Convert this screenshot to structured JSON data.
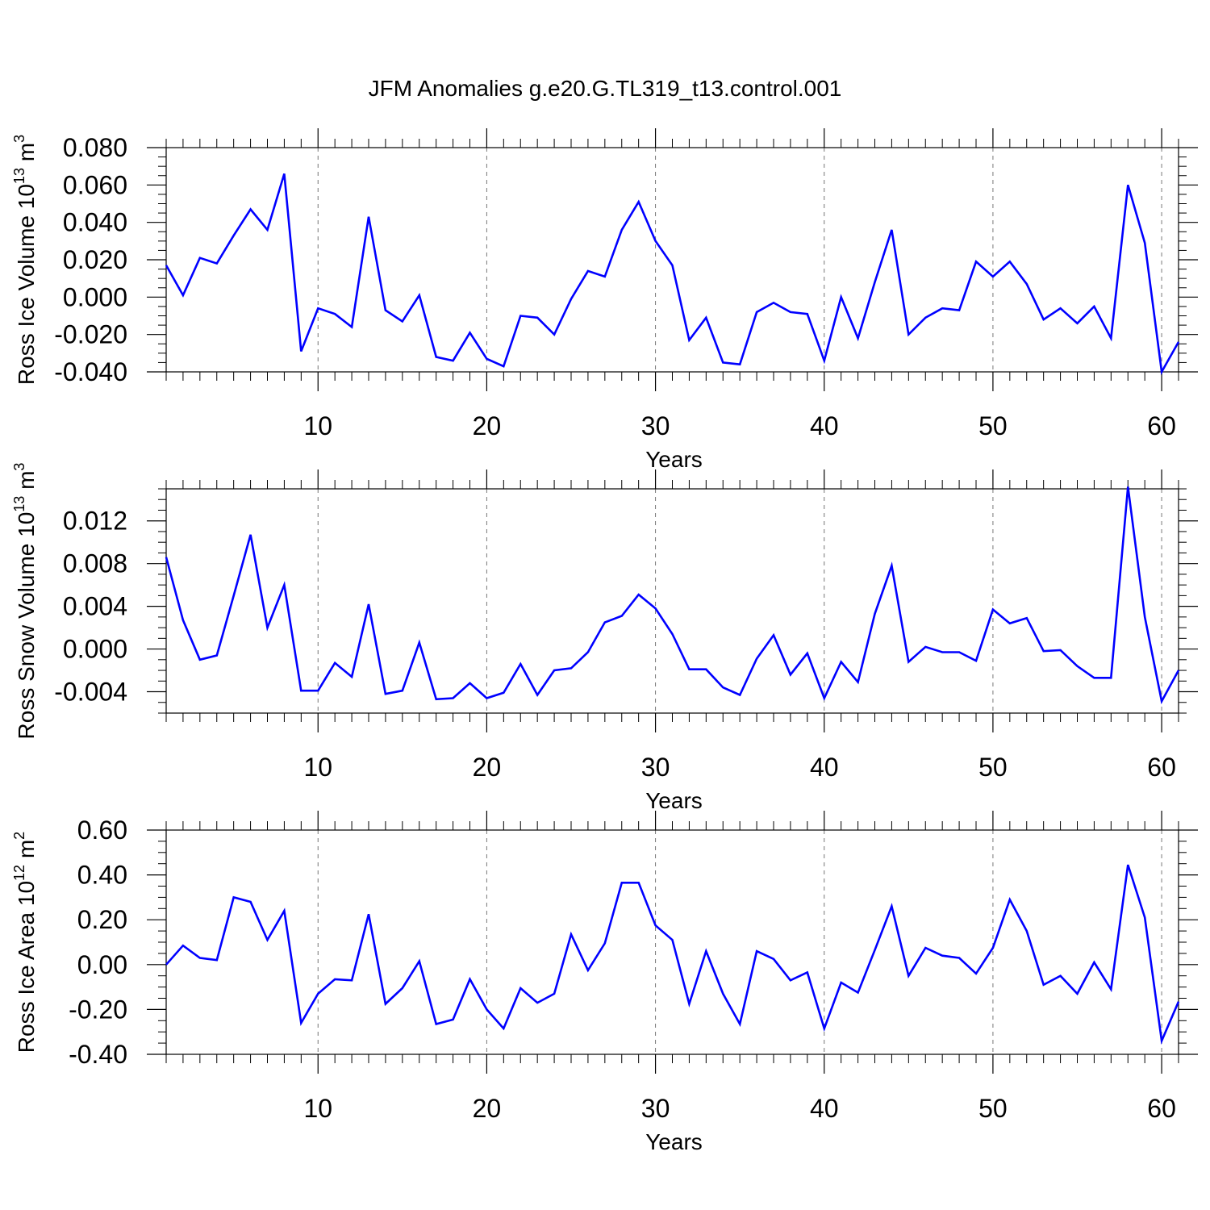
{
  "title": "JFM Anomalies g.e20.G.TL319_t13.control.001",
  "line_color": "#0000ff",
  "chart_data": [
    {
      "type": "line",
      "ylabel": "Ross Ice Volume 10",
      "ylabel_exp": "13",
      "ylabel_unit": " m",
      "ylabel_unit_exp": "3",
      "xlabel": "Years",
      "xlim": [
        1,
        61
      ],
      "ylim": [
        -0.04,
        0.08
      ],
      "x_ticks": [
        10,
        20,
        30,
        40,
        50,
        60
      ],
      "x_tick_labels": [
        "10",
        "20",
        "30",
        "40",
        "50",
        "60"
      ],
      "y_ticks": [
        -0.04,
        -0.02,
        0.0,
        0.02,
        0.04,
        0.06,
        0.08
      ],
      "y_tick_labels": [
        "-0.040",
        "-0.020",
        "0.000",
        "0.020",
        "0.040",
        "0.060",
        "0.080"
      ],
      "y_minor_step": 0.005,
      "x": [
        1,
        2,
        3,
        4,
        5,
        6,
        7,
        8,
        9,
        10,
        11,
        12,
        13,
        14,
        15,
        16,
        17,
        18,
        19,
        20,
        21,
        22,
        23,
        24,
        25,
        26,
        27,
        28,
        29,
        30,
        31,
        32,
        33,
        34,
        35,
        36,
        37,
        38,
        39,
        40,
        41,
        42,
        43,
        44,
        45,
        46,
        47,
        48,
        49,
        50,
        51,
        52,
        53,
        54,
        55,
        56,
        57,
        58,
        59,
        60,
        61
      ],
      "values": [
        0.017,
        0.001,
        0.021,
        0.018,
        0.033,
        0.047,
        0.036,
        0.066,
        -0.029,
        -0.006,
        -0.009,
        -0.016,
        0.043,
        -0.007,
        -0.013,
        0.001,
        -0.032,
        -0.034,
        -0.019,
        -0.033,
        -0.037,
        -0.01,
        -0.011,
        -0.02,
        -0.001,
        0.014,
        0.011,
        0.036,
        0.051,
        0.03,
        0.017,
        -0.023,
        -0.011,
        -0.035,
        -0.036,
        -0.008,
        -0.003,
        -0.008,
        -0.009,
        -0.034,
        0.0,
        -0.022,
        0.008,
        0.036,
        -0.02,
        -0.011,
        -0.006,
        -0.007,
        0.019,
        0.011,
        0.019,
        0.007,
        -0.012,
        -0.006,
        -0.014,
        -0.005,
        -0.022,
        0.06,
        0.029,
        -0.04,
        -0.024
      ]
    },
    {
      "type": "line",
      "ylabel": "Ross Snow Volume 10",
      "ylabel_exp": "13",
      "ylabel_unit": " m",
      "ylabel_unit_exp": "3",
      "xlabel": "Years",
      "xlim": [
        1,
        61
      ],
      "ylim": [
        -0.006,
        0.015
      ],
      "x_ticks": [
        10,
        20,
        30,
        40,
        50,
        60
      ],
      "x_tick_labels": [
        "10",
        "20",
        "30",
        "40",
        "50",
        "60"
      ],
      "y_ticks": [
        -0.004,
        0.0,
        0.004,
        0.008,
        0.012
      ],
      "y_tick_labels": [
        "-0.004",
        "0.000",
        "0.004",
        "0.008",
        "0.012"
      ],
      "y_minor_step": 0.001,
      "x": [
        1,
        2,
        3,
        4,
        5,
        6,
        7,
        8,
        9,
        10,
        11,
        12,
        13,
        14,
        15,
        16,
        17,
        18,
        19,
        20,
        21,
        22,
        23,
        24,
        25,
        26,
        27,
        28,
        29,
        30,
        31,
        32,
        33,
        34,
        35,
        36,
        37,
        38,
        39,
        40,
        41,
        42,
        43,
        44,
        45,
        46,
        47,
        48,
        49,
        50,
        51,
        52,
        53,
        54,
        55,
        56,
        57,
        58,
        59,
        60,
        61
      ],
      "values": [
        0.0086,
        0.0027,
        -0.001,
        -0.0006,
        0.005,
        0.0107,
        0.002,
        0.006,
        -0.0039,
        -0.0039,
        -0.0013,
        -0.0026,
        0.0042,
        -0.0042,
        -0.0039,
        0.0006,
        -0.0047,
        -0.0046,
        -0.0032,
        -0.0046,
        -0.0041,
        -0.0014,
        -0.0043,
        -0.002,
        -0.0018,
        -0.0003,
        0.0025,
        0.0031,
        0.0051,
        0.0038,
        0.0014,
        -0.0019,
        -0.0019,
        -0.0036,
        -0.0043,
        -0.0009,
        0.0013,
        -0.0024,
        -0.0004,
        -0.0046,
        -0.0012,
        -0.0031,
        0.0033,
        0.0078,
        -0.0012,
        0.0002,
        -0.0003,
        -0.0003,
        -0.0011,
        0.0037,
        0.0024,
        0.0029,
        -0.0002,
        -0.0001,
        -0.0016,
        -0.0027,
        -0.0027,
        0.0152,
        0.003,
        -0.0049,
        -0.002
      ]
    },
    {
      "type": "line",
      "ylabel": "Ross Ice Area 10",
      "ylabel_exp": "12",
      "ylabel_unit": " m",
      "ylabel_unit_exp": "2",
      "xlabel": "Years",
      "xlim": [
        1,
        61
      ],
      "ylim": [
        -0.4,
        0.6
      ],
      "x_ticks": [
        10,
        20,
        30,
        40,
        50,
        60
      ],
      "x_tick_labels": [
        "10",
        "20",
        "30",
        "40",
        "50",
        "60"
      ],
      "y_ticks": [
        -0.4,
        -0.2,
        0.0,
        0.2,
        0.4,
        0.6
      ],
      "y_tick_labels": [
        "-0.40",
        "-0.20",
        "0.00",
        "0.20",
        "0.40",
        "0.60"
      ],
      "y_minor_step": 0.05,
      "x": [
        1,
        2,
        3,
        4,
        5,
        6,
        7,
        8,
        9,
        10,
        11,
        12,
        13,
        14,
        15,
        16,
        17,
        18,
        19,
        20,
        21,
        22,
        23,
        24,
        25,
        26,
        27,
        28,
        29,
        30,
        31,
        32,
        33,
        34,
        35,
        36,
        37,
        38,
        39,
        40,
        41,
        42,
        43,
        44,
        45,
        46,
        47,
        48,
        49,
        50,
        51,
        52,
        53,
        54,
        55,
        56,
        57,
        58,
        59,
        60,
        61
      ],
      "values": [
        0.0,
        0.085,
        0.03,
        0.02,
        0.3,
        0.28,
        0.11,
        0.24,
        -0.26,
        -0.13,
        -0.065,
        -0.07,
        0.225,
        -0.175,
        -0.105,
        0.015,
        -0.265,
        -0.245,
        -0.065,
        -0.2,
        -0.285,
        -0.105,
        -0.17,
        -0.13,
        0.135,
        -0.025,
        0.095,
        0.365,
        0.365,
        0.175,
        0.11,
        -0.175,
        0.06,
        -0.13,
        -0.265,
        0.06,
        0.025,
        -0.07,
        -0.035,
        -0.285,
        -0.08,
        -0.125,
        0.065,
        0.26,
        -0.05,
        0.075,
        0.04,
        0.03,
        -0.04,
        0.075,
        0.29,
        0.15,
        -0.09,
        -0.05,
        -0.13,
        0.01,
        -0.11,
        0.445,
        0.21,
        -0.34,
        -0.165
      ]
    }
  ]
}
